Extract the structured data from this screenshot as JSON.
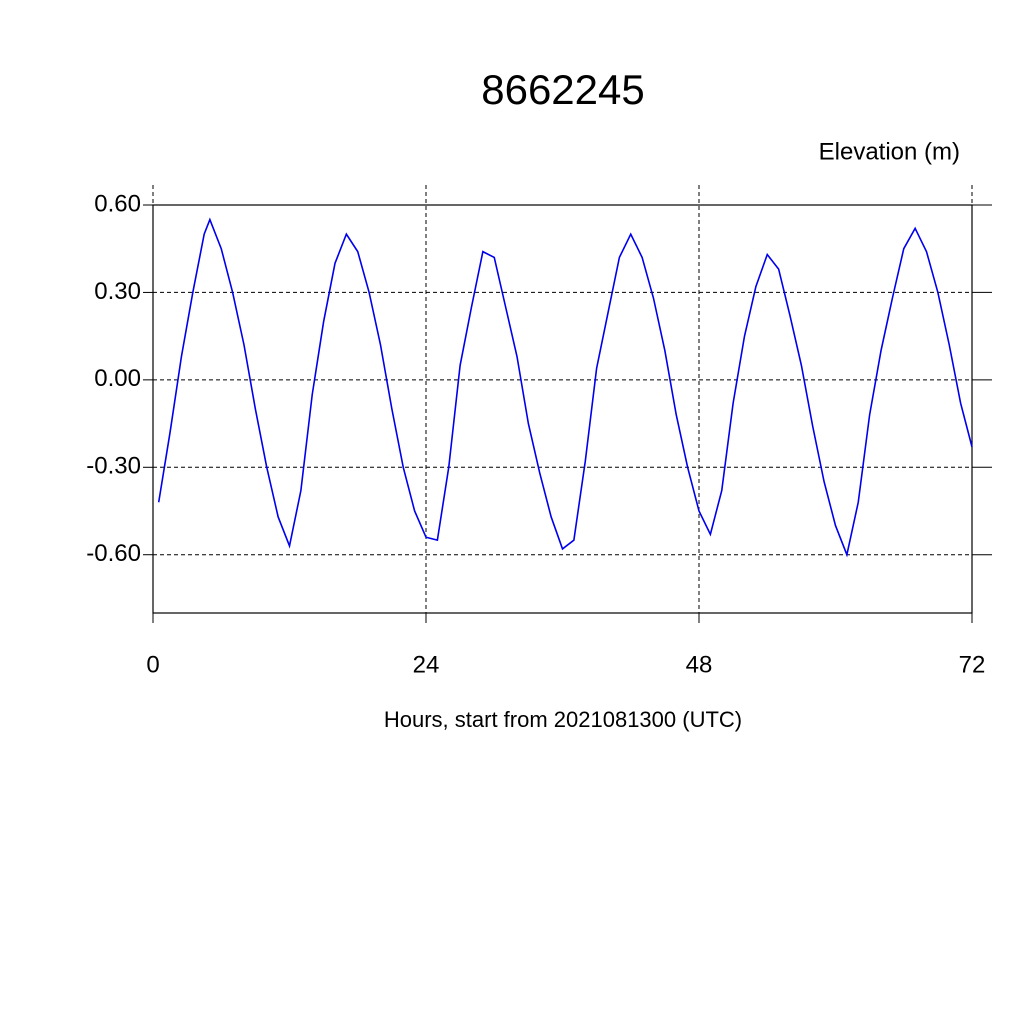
{
  "chart_data": {
    "type": "line",
    "title": "8662245",
    "subtitle": "Elevation (m)",
    "x_label": "Hours, start from 2021081300 (UTC)",
    "x": [
      0.5,
      1.5,
      2.5,
      3.5,
      4.5,
      5,
      6,
      7,
      8,
      9,
      10,
      11,
      12,
      13,
      14,
      15,
      16,
      17,
      18,
      19,
      20,
      21,
      22,
      23,
      24,
      25,
      26,
      27,
      28,
      29,
      30,
      31,
      32,
      33,
      34,
      35,
      36,
      37,
      38,
      39,
      40,
      41,
      42,
      43,
      44,
      45,
      46,
      47,
      48,
      49,
      50,
      51,
      52,
      53,
      54,
      55,
      56,
      57,
      58,
      59,
      60,
      61,
      62,
      63,
      64,
      65,
      66,
      67,
      68,
      69,
      70,
      71,
      72
    ],
    "series": [
      {
        "color": "#0000ee",
        "values": [
          -0.42,
          -0.18,
          0.08,
          0.3,
          0.5,
          0.55,
          0.45,
          0.3,
          0.12,
          -0.1,
          -0.3,
          -0.47,
          -0.57,
          -0.38,
          -0.05,
          0.2,
          0.4,
          0.5,
          0.44,
          0.3,
          0.12,
          -0.1,
          -0.3,
          -0.45,
          -0.54,
          -0.55,
          -0.3,
          0.05,
          0.25,
          0.44,
          0.42,
          0.25,
          0.08,
          -0.15,
          -0.32,
          -0.47,
          -0.58,
          -0.55,
          -0.28,
          0.04,
          0.23,
          0.42,
          0.5,
          0.42,
          0.28,
          0.1,
          -0.12,
          -0.3,
          -0.45,
          -0.53,
          -0.38,
          -0.08,
          0.15,
          0.32,
          0.43,
          0.38,
          0.22,
          0.05,
          -0.16,
          -0.35,
          -0.5,
          -0.6,
          -0.42,
          -0.12,
          0.1,
          0.28,
          0.45,
          0.52,
          0.44,
          0.3,
          0.12,
          -0.08,
          -0.23
        ]
      }
    ],
    "xlim": [
      0,
      72
    ],
    "xticks": [
      0,
      24,
      48,
      72
    ],
    "ylim": [
      -0.8,
      0.6
    ],
    "yticks": [
      {
        "value": -0.6,
        "label": "-0.60"
      },
      {
        "value": -0.3,
        "label": "-0.30"
      },
      {
        "value": 0,
        "label": "0.00"
      },
      {
        "value": 0.3,
        "label": "0.30"
      },
      {
        "value": 0.6,
        "label": "0.60"
      }
    ],
    "grid": true
  }
}
